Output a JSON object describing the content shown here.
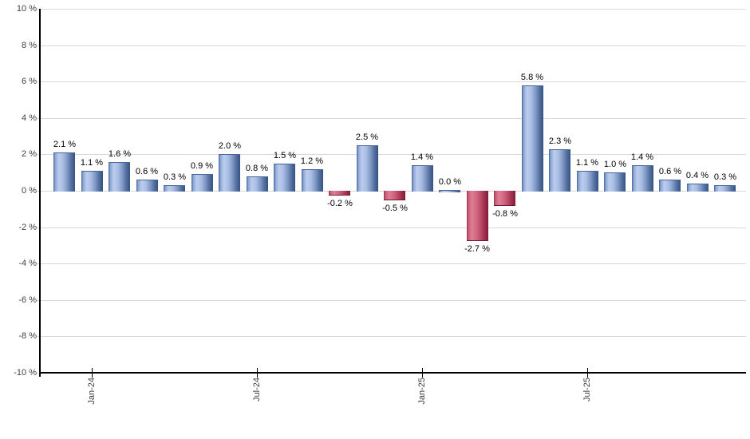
{
  "chart_data": {
    "type": "bar",
    "title": "",
    "xlabel": "",
    "ylabel": "",
    "ylim": [
      -10,
      10
    ],
    "y_tick_step": 2,
    "grid": true,
    "legend": "none",
    "y_tick_labels": [
      "10 %",
      "8 %",
      "6 %",
      "4 %",
      "2 %",
      "0 %",
      "-2 %",
      "-4 %",
      "-6 %",
      "-8 %",
      "-10 %"
    ],
    "x_ticks": [
      {
        "bar_index": 1,
        "label": "Jan-24"
      },
      {
        "bar_index": 7,
        "label": "Jul-24"
      },
      {
        "bar_index": 13,
        "label": "Jan-25"
      },
      {
        "bar_index": 19,
        "label": "Jul-25"
      }
    ],
    "values": [
      2.1,
      1.1,
      1.6,
      0.6,
      0.3,
      0.9,
      2.0,
      0.8,
      1.5,
      1.2,
      -0.2,
      2.5,
      -0.5,
      1.4,
      0.0,
      -2.7,
      -0.8,
      5.8,
      2.3,
      1.1,
      1.0,
      1.4,
      0.6,
      0.4,
      0.3
    ],
    "bar_labels": [
      "2.1 %",
      "1.1 %",
      "1.6 %",
      "0.6 %",
      "0.3 %",
      "0.9 %",
      "2.0 %",
      "0.8 %",
      "1.5 %",
      "1.2 %",
      "-0.2 %",
      "2.5 %",
      "-0.5 %",
      "1.4 %",
      "0.0 %",
      "-2.7 %",
      "-0.8 %",
      "5.8 %",
      "2.3 %",
      "1.1 %",
      "1.0 %",
      "1.4 %",
      "0.6 %",
      "0.4 %",
      "0.3 %"
    ],
    "colors": {
      "background": "#ffffff",
      "gridline": "#d8d8d8",
      "axis": "#000000",
      "tick_label": "#3f3f3f",
      "value_label": "#000000",
      "positive_edge_left": "#47659a",
      "positive_bright": "#bccdee",
      "positive_mid": "#a9bce2",
      "positive_edge_right": "#35517f",
      "negative_edge_left": "#9e2d4c",
      "negative_bright": "#dd7e95",
      "negative_mid": "#d26880",
      "negative_edge_right": "#7c1c38"
    }
  }
}
